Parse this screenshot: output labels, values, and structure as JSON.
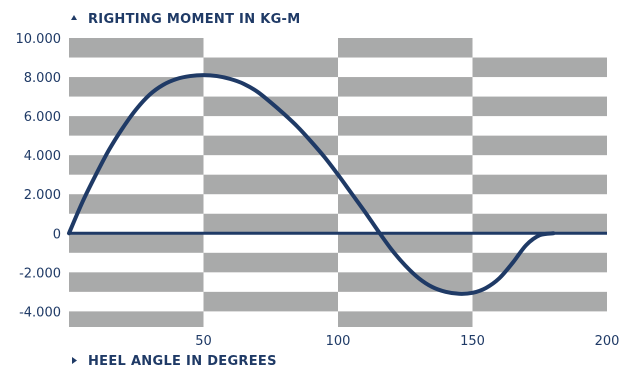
{
  "chart_data": {
    "type": "line",
    "ylabel": "RIGHTING MOMENT IN KG-M",
    "xlabel": "HEEL ANGLE IN DEGREES",
    "xlim": [
      0,
      200
    ],
    "ylim": [
      -4800,
      10000
    ],
    "x_ticks": [
      "50",
      "100",
      "150",
      "200"
    ],
    "y_ticks": [
      "10.000",
      "8.000",
      "6.000",
      "4.000",
      "2.000",
      "0",
      "-2.000",
      "-4.000"
    ],
    "y_tick_values": [
      10000,
      8000,
      6000,
      4000,
      2000,
      0,
      -2000,
      -4000
    ],
    "x_tick_values": [
      50,
      100,
      150,
      200
    ],
    "grid": true,
    "colors": {
      "line": "#1f3a66",
      "band_dark": "#a9aaaa",
      "band_light": "#ffffff",
      "text": "#1f3a66"
    },
    "series": [
      {
        "x": [
          0,
          5,
          10,
          15,
          20,
          25,
          30,
          35,
          40,
          45,
          50,
          55,
          60,
          65,
          70,
          75,
          80,
          85,
          90,
          95,
          100,
          105,
          110,
          115,
          120,
          125,
          130,
          135,
          140,
          145,
          150,
          155,
          160,
          165,
          170,
          175,
          180
        ],
        "y": [
          0,
          1600,
          3000,
          4300,
          5400,
          6350,
          7100,
          7600,
          7900,
          8050,
          8100,
          8050,
          7900,
          7650,
          7250,
          6700,
          6100,
          5450,
          4700,
          3900,
          3000,
          2050,
          1100,
          100,
          -850,
          -1650,
          -2300,
          -2750,
          -3000,
          -3100,
          -3050,
          -2800,
          -2300,
          -1500,
          -600,
          -100,
          0
        ]
      }
    ]
  }
}
